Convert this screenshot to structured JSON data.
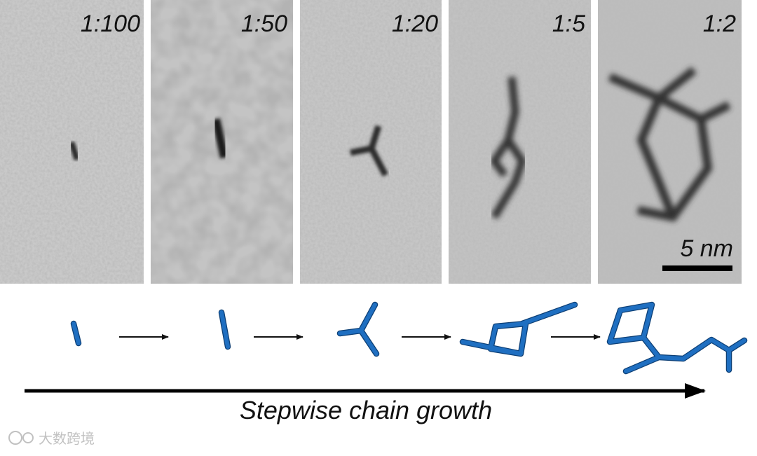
{
  "panels": [
    {
      "label": "1:100"
    },
    {
      "label": "1:50"
    },
    {
      "label": "1:20"
    },
    {
      "label": "1:5"
    },
    {
      "label": "1:2"
    }
  ],
  "scale_bar": "5 nm",
  "caption": "Stepwise chain growth",
  "watermark": "大数跨境"
}
